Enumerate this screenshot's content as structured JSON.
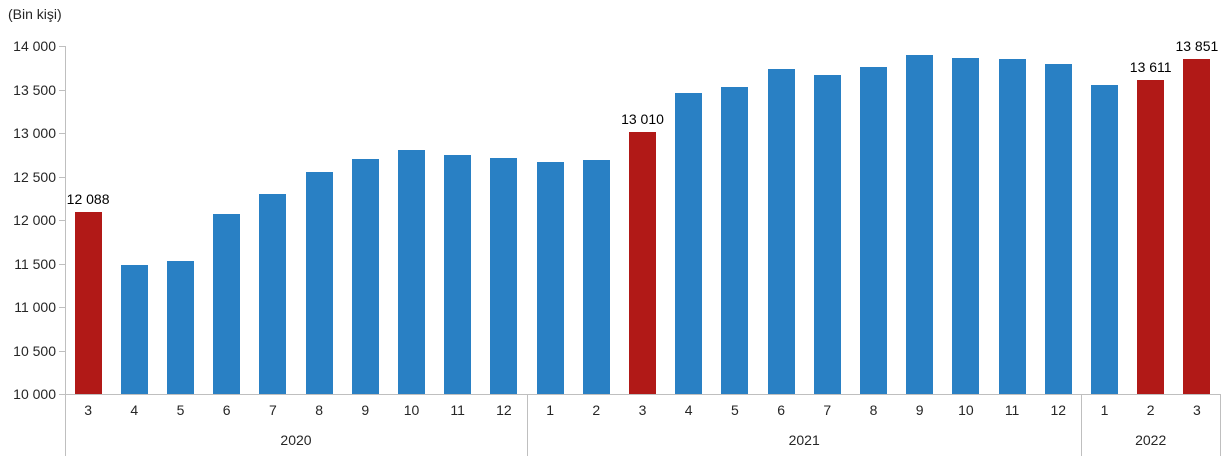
{
  "title": "(Bin kişi)",
  "colors": {
    "bar_blue": "#2980C4",
    "bar_red": "#B11917",
    "axis_gray": "#BFBFBF",
    "text": "#262626",
    "value_label": "#000000"
  },
  "chart_data": {
    "type": "bar",
    "title": "(Bin kişi)",
    "xlabel": "",
    "ylabel": "",
    "ylim": [
      10000,
      14000
    ],
    "ytick_interval": 500,
    "ytick_labels": [
      "14 000",
      "13 500",
      "13 000",
      "12 500",
      "12 000",
      "11 500",
      "11 000",
      "10 500",
      "10 000"
    ],
    "grid": false,
    "legend": "none",
    "points": [
      {
        "year": 2020,
        "month": "3",
        "value": 12088,
        "highlight": true,
        "label": "12 088"
      },
      {
        "year": 2020,
        "month": "4",
        "value": 11480,
        "highlight": false
      },
      {
        "year": 2020,
        "month": "5",
        "value": 11530,
        "highlight": false
      },
      {
        "year": 2020,
        "month": "6",
        "value": 12070,
        "highlight": false
      },
      {
        "year": 2020,
        "month": "7",
        "value": 12295,
        "highlight": false
      },
      {
        "year": 2020,
        "month": "8",
        "value": 12550,
        "highlight": false
      },
      {
        "year": 2020,
        "month": "9",
        "value": 12705,
        "highlight": false
      },
      {
        "year": 2020,
        "month": "10",
        "value": 12800,
        "highlight": false
      },
      {
        "year": 2020,
        "month": "11",
        "value": 12750,
        "highlight": false
      },
      {
        "year": 2020,
        "month": "12",
        "value": 12710,
        "highlight": false
      },
      {
        "year": 2021,
        "month": "1",
        "value": 12665,
        "highlight": false
      },
      {
        "year": 2021,
        "month": "2",
        "value": 12690,
        "highlight": false
      },
      {
        "year": 2021,
        "month": "3",
        "value": 13010,
        "highlight": true,
        "label": "13 010"
      },
      {
        "year": 2021,
        "month": "4",
        "value": 13460,
        "highlight": false
      },
      {
        "year": 2021,
        "month": "5",
        "value": 13530,
        "highlight": false
      },
      {
        "year": 2021,
        "month": "6",
        "value": 13730,
        "highlight": false
      },
      {
        "year": 2021,
        "month": "7",
        "value": 13670,
        "highlight": false
      },
      {
        "year": 2021,
        "month": "8",
        "value": 13760,
        "highlight": false
      },
      {
        "year": 2021,
        "month": "9",
        "value": 13900,
        "highlight": false
      },
      {
        "year": 2021,
        "month": "10",
        "value": 13865,
        "highlight": false
      },
      {
        "year": 2021,
        "month": "11",
        "value": 13845,
        "highlight": false
      },
      {
        "year": 2021,
        "month": "12",
        "value": 13790,
        "highlight": false
      },
      {
        "year": 2022,
        "month": "1",
        "value": 13550,
        "highlight": false
      },
      {
        "year": 2022,
        "month": "2",
        "value": 13611,
        "highlight": true,
        "label": "13 611"
      },
      {
        "year": 2022,
        "month": "3",
        "value": 13851,
        "highlight": true,
        "label": "13 851"
      }
    ],
    "year_groups": [
      "2020",
      "2021",
      "2022"
    ]
  }
}
